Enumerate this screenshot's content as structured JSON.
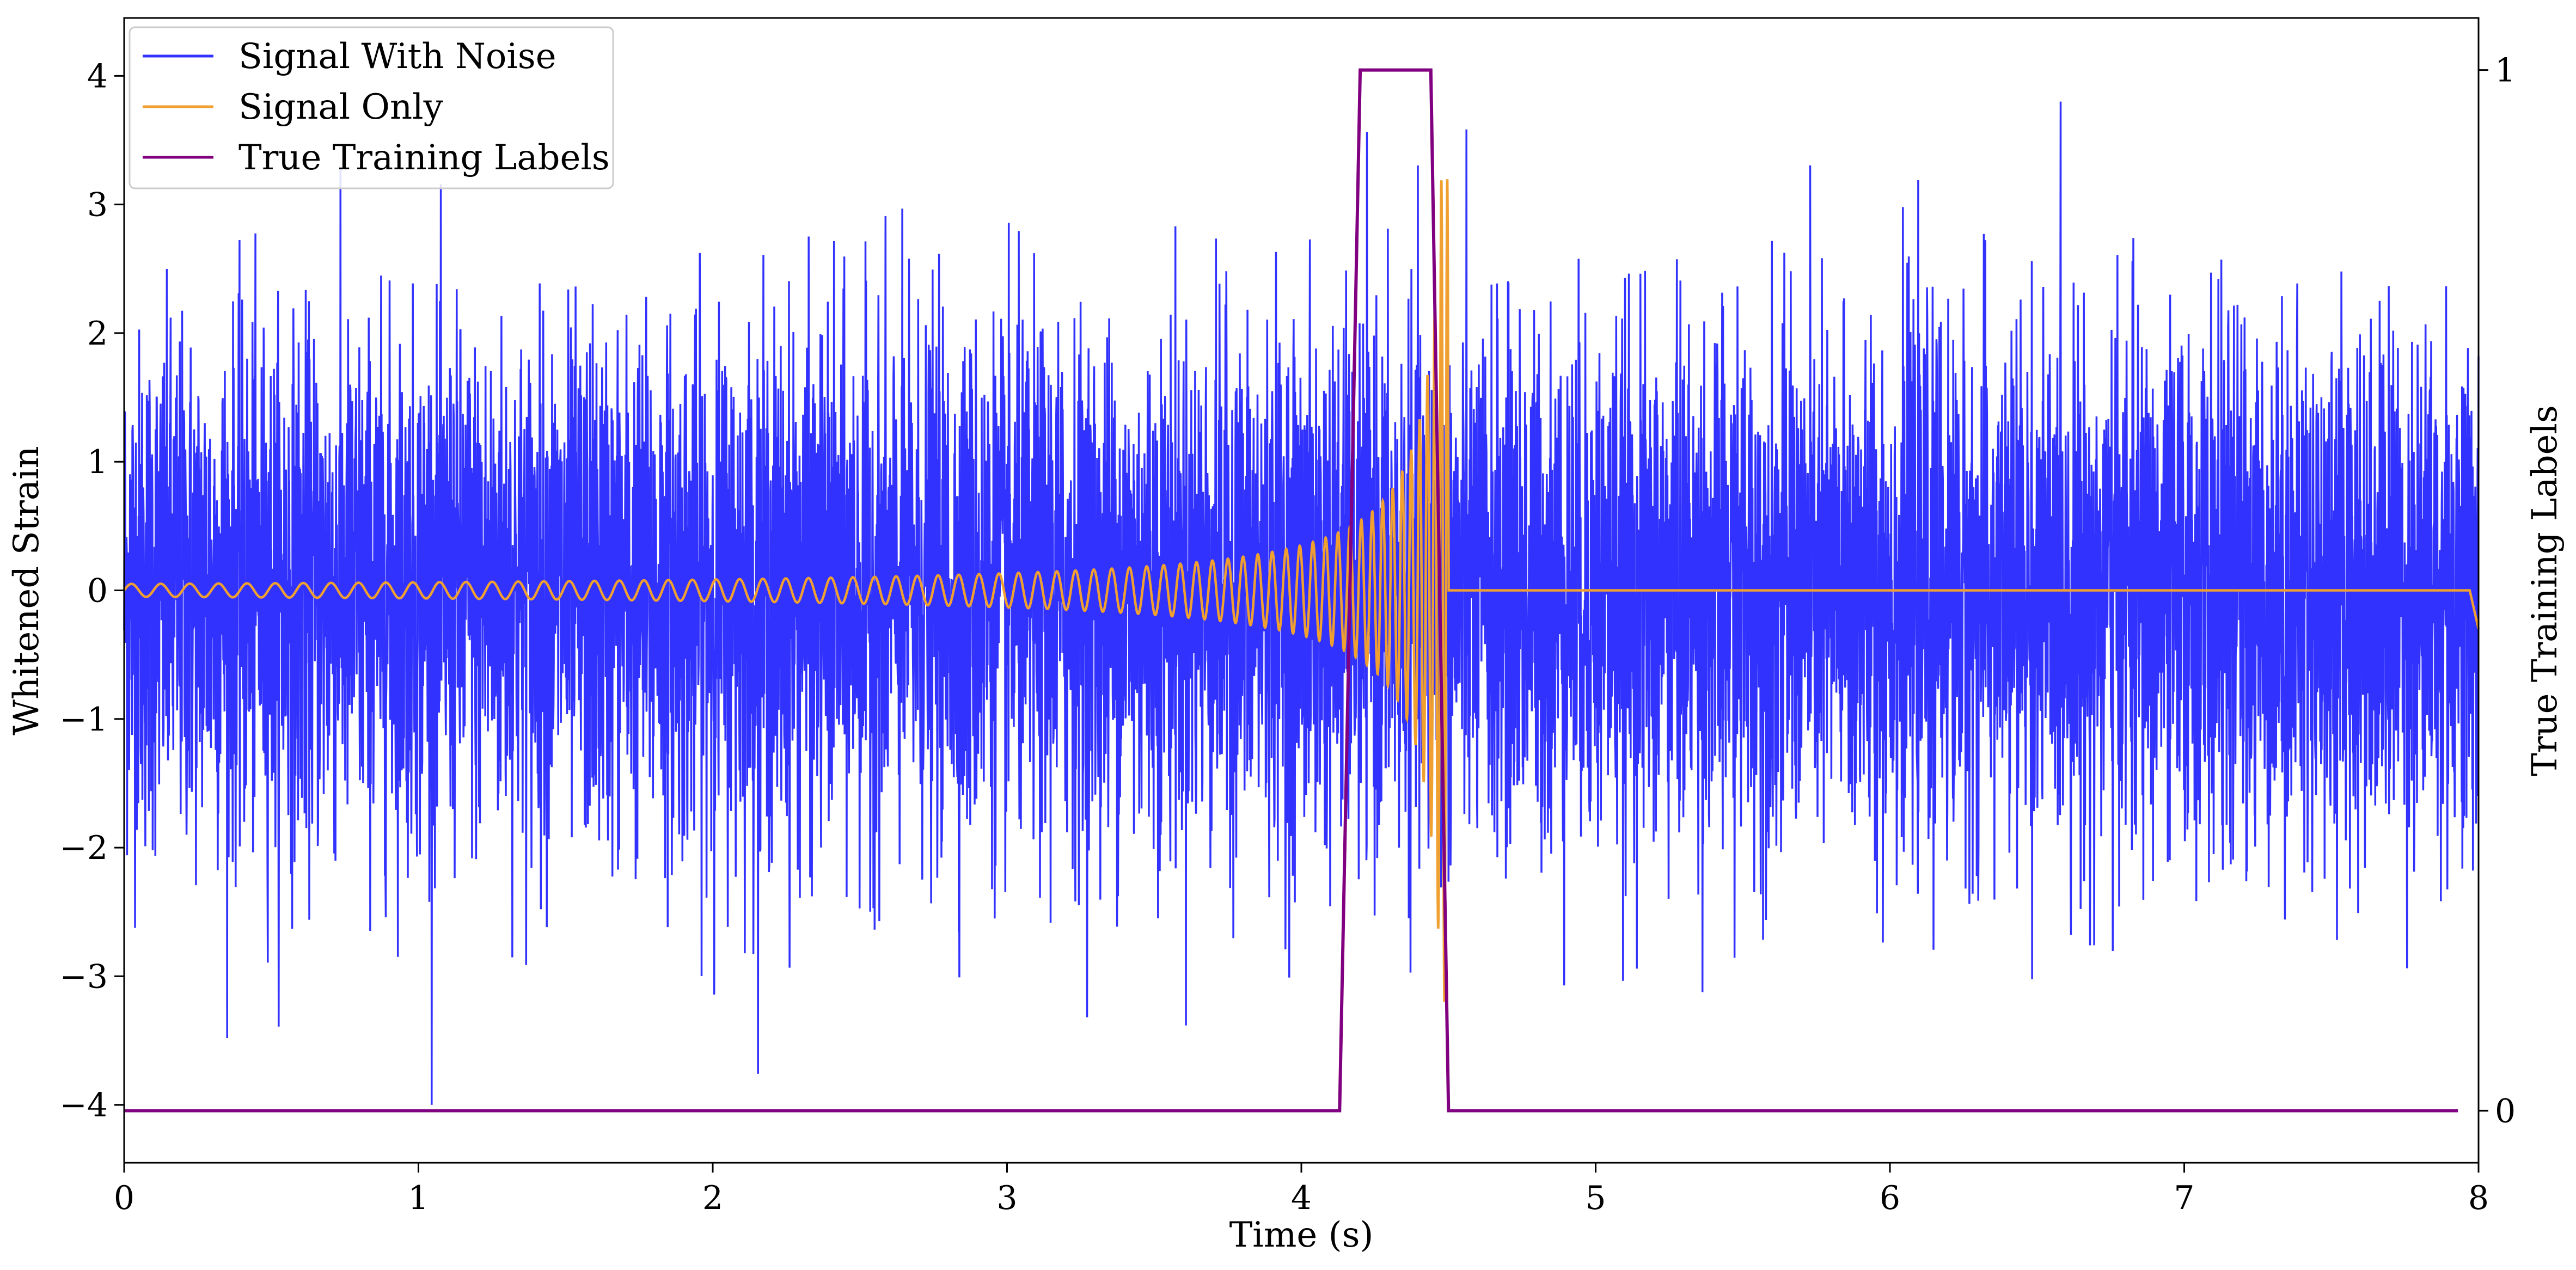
{
  "chart_data": {
    "type": "line",
    "title": "",
    "xlabel": "Time (s)",
    "ylabel": "Whitened Strain",
    "y2label": "True Training Labels",
    "xlim": [
      0,
      8
    ],
    "ylim": [
      -4.45,
      4.45
    ],
    "y2lim": [
      -0.05,
      1.05
    ],
    "xticks": [
      "0",
      "1",
      "2",
      "3",
      "4",
      "5",
      "6",
      "7",
      "8"
    ],
    "yticks": [
      "−4",
      "−3",
      "−2",
      "−1",
      "0",
      "1",
      "2",
      "3",
      "4"
    ],
    "y2ticks": [
      "0",
      "1"
    ],
    "grid": false,
    "legend_position": "top-left",
    "colors": {
      "signal_with_noise": "#3232ff",
      "signal_only": "#f0a030",
      "training_labels": "#800080"
    },
    "series": [
      {
        "name": "Signal With Noise",
        "axis": "left",
        "description_values": {
          "x_start": 0,
          "x_end": 8,
          "typical_amplitude": 1.0,
          "min": -4.0,
          "max": 3.8
        }
      },
      {
        "name": "Signal Only",
        "axis": "left",
        "chirp": {
          "x_start": 0,
          "x_merger": 4.5,
          "x_end": 8,
          "amplitude_start": 0.05,
          "amplitude_merger": 3.2,
          "frequency_start": 10,
          "frequency_merger": 60
        }
      },
      {
        "name": "True Training Labels",
        "axis": "right",
        "x": [
          0,
          4.13,
          4.2,
          4.44,
          4.5,
          7.93
        ],
        "values": [
          0,
          0,
          1,
          1,
          0,
          0
        ]
      }
    ]
  }
}
